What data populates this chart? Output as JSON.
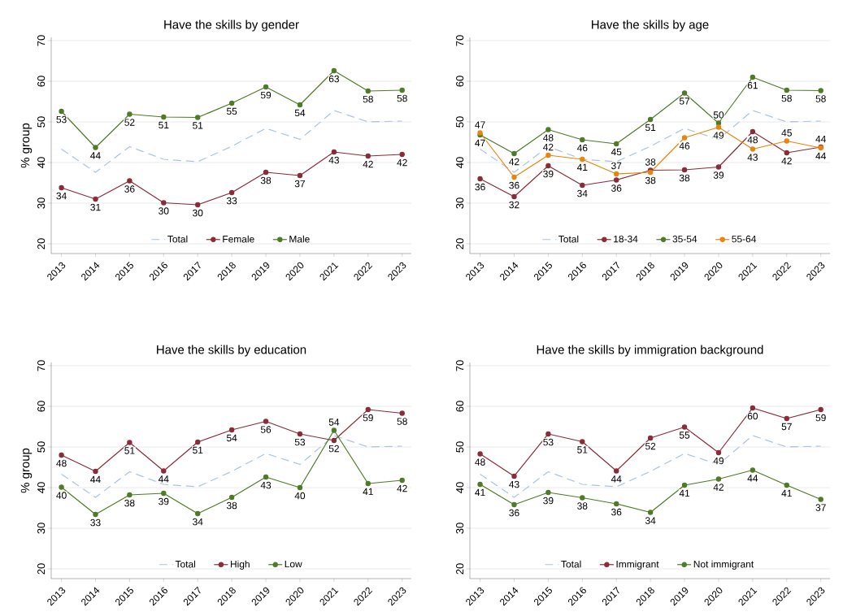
{
  "chart_data": [
    {
      "type": "line",
      "title": "Have the skills by gender",
      "ylabel": "% group",
      "categories": [
        "2013",
        "2014",
        "2015",
        "2016",
        "2017",
        "2018",
        "2019",
        "2020",
        "2021",
        "2022",
        "2023"
      ],
      "ylim": [
        17.6,
        70.8
      ],
      "yticks": [
        20,
        30,
        40,
        50,
        60,
        70
      ],
      "grid": "y",
      "legend": "bottom",
      "series": [
        {
          "name": "Total",
          "color": "#a9c4e4",
          "marker": "none",
          "line_style": "dashed",
          "values": [
            43.3,
            37.6,
            43.9,
            40.8,
            40.2,
            44.0,
            48.4,
            45.7,
            52.8,
            50.0,
            50.2
          ]
        },
        {
          "name": "Female",
          "color": "#8b2b38",
          "marker": "circle",
          "line_style": "solid",
          "values": [
            33.8,
            31.0,
            35.5,
            30.1,
            29.6,
            32.6,
            37.6,
            36.8,
            42.6,
            41.6,
            42.0
          ],
          "value_labels": [
            "34",
            "31",
            "36",
            "30",
            "30",
            "33",
            "38",
            "37",
            "43",
            "42",
            "42"
          ]
        },
        {
          "name": "Male",
          "color": "#4f7a28",
          "marker": "circle",
          "line_style": "solid",
          "values": [
            52.6,
            43.7,
            51.9,
            51.2,
            51.1,
            54.6,
            58.6,
            54.2,
            62.6,
            57.6,
            57.8
          ],
          "value_labels": [
            "53",
            "44",
            "52",
            "51",
            "51",
            "55",
            "59",
            "54",
            "63",
            "58",
            "58"
          ]
        }
      ]
    },
    {
      "type": "line",
      "title": "Have the skills by age",
      "categories": [
        "2013",
        "2014",
        "2015",
        "2016",
        "2017",
        "2018",
        "2019",
        "2020",
        "2021",
        "2022",
        "2023"
      ],
      "ylim": [
        17.6,
        70.8
      ],
      "yticks": [
        20,
        30,
        40,
        50,
        60,
        70
      ],
      "grid": "y",
      "legend": "bottom",
      "series": [
        {
          "name": "Total",
          "color": "#a9c4e4",
          "marker": "none",
          "line_style": "dashed",
          "values": [
            43.3,
            37.6,
            43.9,
            40.8,
            40.2,
            44.0,
            48.4,
            45.7,
            52.8,
            50.0,
            50.2
          ]
        },
        {
          "name": "18-34",
          "color": "#8b2b38",
          "marker": "circle",
          "line_style": "solid",
          "values": [
            36.0,
            31.6,
            39.2,
            34.4,
            35.7,
            38.1,
            38.2,
            38.9,
            47.6,
            42.4,
            43.8
          ],
          "value_labels": [
            "36",
            "32",
            "39",
            "34",
            "36",
            "38",
            "38",
            "39",
            "48",
            "42",
            "44"
          ]
        },
        {
          "name": "35-54",
          "color": "#4f7a28",
          "marker": "circle",
          "line_style": "solid",
          "values": [
            46.8,
            42.2,
            48.1,
            45.6,
            44.6,
            50.6,
            57.1,
            49.7,
            61.0,
            57.8,
            57.7
          ],
          "value_labels": [
            "47",
            "42",
            "48",
            "46",
            "45",
            "51",
            "57",
            "50",
            "61",
            "58",
            "58"
          ]
        },
        {
          "name": "55-64",
          "color": "#e8850c",
          "marker": "circle",
          "line_style": "solid",
          "values": [
            47.3,
            36.4,
            41.8,
            40.8,
            37.2,
            37.6,
            46.1,
            48.7,
            43.3,
            45.3,
            43.6
          ],
          "value_labels": [
            "47",
            "36",
            "42",
            "41",
            "37",
            "38",
            "46",
            "49",
            "43",
            "45",
            "44"
          ]
        }
      ]
    },
    {
      "type": "line",
      "title": "Have the skills by education",
      "ylabel": "% group",
      "categories": [
        "2013",
        "2014",
        "2015",
        "2016",
        "2017",
        "2018",
        "2019",
        "2020",
        "2021",
        "2022",
        "2023"
      ],
      "ylim": [
        17.6,
        70.8
      ],
      "yticks": [
        20,
        30,
        40,
        50,
        60,
        70
      ],
      "grid": "y",
      "legend": "bottom",
      "series": [
        {
          "name": "Total",
          "color": "#a9c4e4",
          "marker": "none",
          "line_style": "dashed",
          "values": [
            43.3,
            37.6,
            43.9,
            40.8,
            40.2,
            44.0,
            48.4,
            45.7,
            52.8,
            50.0,
            50.2
          ]
        },
        {
          "name": "High",
          "color": "#8b2b38",
          "marker": "circle",
          "line_style": "solid",
          "values": [
            48.0,
            44.0,
            51.1,
            44.1,
            51.2,
            54.2,
            56.3,
            53.2,
            51.6,
            59.2,
            58.3
          ],
          "value_labels": [
            "48",
            "44",
            "51",
            "44",
            "51",
            "54",
            "56",
            "53",
            "52",
            "59",
            "58"
          ]
        },
        {
          "name": "Low",
          "color": "#4f7a28",
          "marker": "circle",
          "line_style": "solid",
          "values": [
            40.1,
            33.4,
            38.2,
            38.6,
            33.6,
            37.6,
            42.6,
            40.0,
            54.1,
            41.0,
            41.8
          ],
          "value_labels": [
            "40",
            "33",
            "38",
            "39",
            "34",
            "38",
            "43",
            "40",
            "54",
            "41",
            "42"
          ]
        }
      ]
    },
    {
      "type": "line",
      "title": "Have the skills by immigration background",
      "categories": [
        "2013",
        "2014",
        "2015",
        "2016",
        "2017",
        "2018",
        "2019",
        "2020",
        "2021",
        "2022",
        "2023"
      ],
      "ylim": [
        17.6,
        70.8
      ],
      "yticks": [
        20,
        30,
        40,
        50,
        60,
        70
      ],
      "grid": "y",
      "legend": "bottom",
      "series": [
        {
          "name": "Total",
          "color": "#a9c4e4",
          "marker": "none",
          "line_style": "dashed",
          "values": [
            43.3,
            37.6,
            43.9,
            40.8,
            40.2,
            44.0,
            48.4,
            45.7,
            52.8,
            50.0,
            50.2
          ]
        },
        {
          "name": "Immigrant",
          "color": "#8b2b38",
          "marker": "circle",
          "line_style": "solid",
          "values": [
            48.3,
            42.8,
            53.2,
            51.3,
            44.1,
            52.2,
            54.9,
            48.6,
            59.6,
            57.0,
            59.2
          ],
          "value_labels": [
            "48",
            "43",
            "53",
            "51",
            "44",
            "52",
            "55",
            "49",
            "60",
            "57",
            "59"
          ]
        },
        {
          "name": "Not immigrant",
          "color": "#4f7a28",
          "marker": "circle",
          "line_style": "solid",
          "values": [
            40.8,
            35.8,
            38.8,
            37.5,
            36.0,
            33.9,
            40.6,
            42.1,
            44.3,
            40.6,
            37.1
          ],
          "value_labels": [
            "41",
            "36",
            "39",
            "38",
            "36",
            "34",
            "41",
            "42",
            "44",
            "41",
            "37"
          ]
        }
      ]
    }
  ]
}
